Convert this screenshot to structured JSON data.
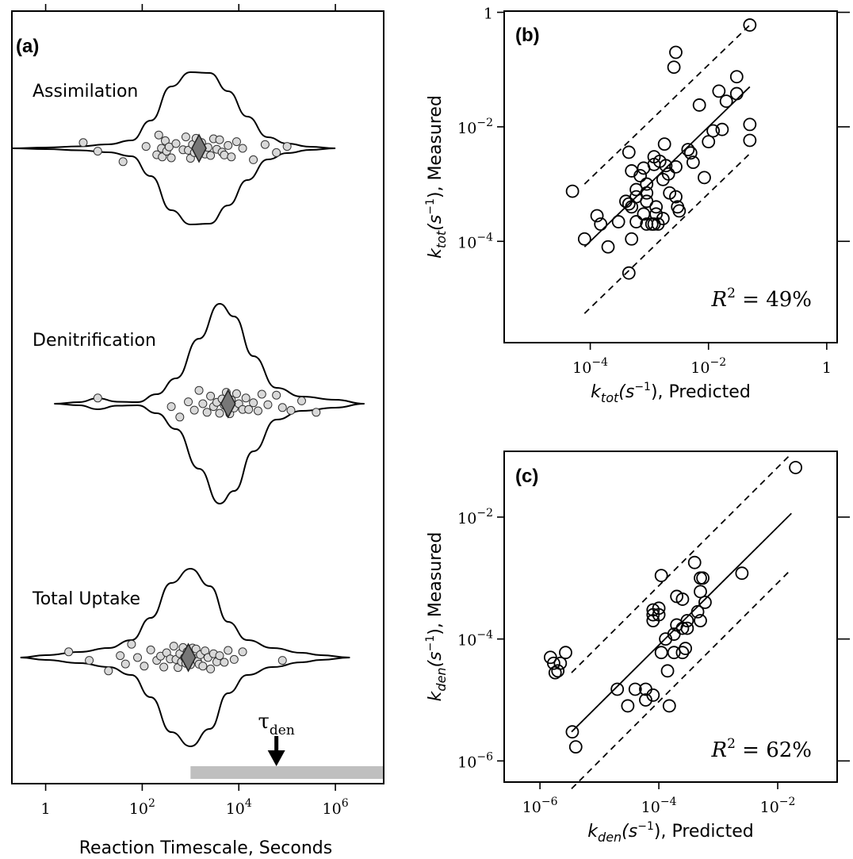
{
  "chart_data": [
    {
      "type": "scatter",
      "panel": "(a)",
      "xlabel": "Reaction Timescale, Seconds",
      "xscale": "log",
      "xlim": [
        0.2,
        10000000
      ],
      "x_ticks": [
        {
          "value": 1,
          "base": "1",
          "exp": ""
        },
        {
          "value": 100,
          "base": "10",
          "exp": "2"
        },
        {
          "value": 10000,
          "base": "10",
          "exp": "4"
        },
        {
          "value": 1000000,
          "base": "10",
          "exp": "6"
        }
      ],
      "groups": [
        {
          "name": "Assimilation",
          "median": 1500,
          "points": [
            6,
            12,
            40,
            120,
            200,
            220,
            250,
            260,
            300,
            320,
            360,
            400,
            500,
            700,
            800,
            900,
            1000,
            1100,
            1200,
            1300,
            1400,
            1500,
            1700,
            2000,
            2300,
            2600,
            3000,
            3500,
            4000,
            4500,
            5000,
            6000,
            7000,
            9000,
            12000,
            20000,
            35000,
            60000,
            100000
          ]
        },
        {
          "name": "Denitrification",
          "median": 6000,
          "points": [
            12,
            400,
            600,
            900,
            1200,
            1500,
            1800,
            2200,
            2600,
            3000,
            3500,
            4000,
            4500,
            5000,
            5500,
            6000,
            6500,
            7000,
            8000,
            9000,
            10000,
            12000,
            14000,
            16000,
            20000,
            25000,
            30000,
            40000,
            60000,
            80000,
            120000,
            200000,
            400000
          ]
        },
        {
          "name": "Total Uptake",
          "median": 900,
          "points": [
            3,
            8,
            20,
            35,
            45,
            60,
            80,
            110,
            150,
            200,
            240,
            280,
            320,
            380,
            450,
            500,
            550,
            600,
            650,
            700,
            750,
            800,
            850,
            900,
            950,
            1000,
            1100,
            1200,
            1300,
            1400,
            1500,
            1600,
            1800,
            2000,
            2300,
            2600,
            3000,
            3500,
            4000,
            5000,
            6000,
            8000,
            12000,
            80000
          ]
        }
      ],
      "annotation": {
        "symbol": "τ",
        "subscript": "den",
        "value": 60000
      },
      "range_bar": [
        1000,
        10000000
      ]
    },
    {
      "type": "scatter",
      "panel": "(b)",
      "xscale": "log",
      "yscale": "log",
      "xlim": [
        3.5e-06,
        1.5
      ],
      "ylim": [
        1.7e-06,
        1.05
      ],
      "x_ticks": [
        {
          "value": 0.0001,
          "base": "10",
          "exp": "−4"
        },
        {
          "value": 0.01,
          "base": "10",
          "exp": "−2"
        },
        {
          "value": 1,
          "base": "1",
          "exp": ""
        }
      ],
      "y_ticks": [
        {
          "value": 0.0001,
          "base": "10",
          "exp": "−4"
        },
        {
          "value": 0.01,
          "base": "10",
          "exp": "−2"
        },
        {
          "value": 1,
          "base": "1",
          "exp": ""
        }
      ],
      "xlabel": {
        "var": "k",
        "sub": "tot",
        "unit": "(s",
        "unit_exp": "−1",
        "close": ")",
        "suffix": ", Predicted"
      },
      "ylabel": {
        "var": "k",
        "sub": "tot",
        "unit": "(s",
        "unit_exp": "−1",
        "close": ")",
        "suffix": ", Measured"
      },
      "r2_label": {
        "lhs": "R",
        "exp": "2",
        "rhs": " = 49%"
      },
      "fit_line": [
        [
          8e-05,
          8e-05
        ],
        [
          0.05,
          0.05
        ]
      ],
      "band_upper": [
        [
          8e-05,
          0.001
        ],
        [
          0.05,
          0.6
        ]
      ],
      "band_lower": [
        [
          8e-05,
          5.5e-06
        ],
        [
          0.05,
          0.0034
        ]
      ],
      "points": [
        [
          0.05,
          0.6
        ],
        [
          0.0028,
          0.2
        ],
        [
          0.0026,
          0.11
        ],
        [
          0.03,
          0.075
        ],
        [
          0.015,
          0.042
        ],
        [
          0.03,
          0.038
        ],
        [
          0.02,
          0.028
        ],
        [
          0.007,
          0.024
        ],
        [
          0.05,
          0.011
        ],
        [
          0.017,
          0.009
        ],
        [
          0.012,
          0.0085
        ],
        [
          0.05,
          0.0058
        ],
        [
          0.01,
          0.0055
        ],
        [
          0.0018,
          0.005
        ],
        [
          0.0045,
          0.004
        ],
        [
          0.005,
          0.0035
        ],
        [
          0.00045,
          0.0036
        ],
        [
          0.0012,
          0.003
        ],
        [
          0.0015,
          0.0025
        ],
        [
          0.0019,
          0.0021
        ],
        [
          0.0028,
          0.002
        ],
        [
          0.0012,
          0.0022
        ],
        [
          0.0008,
          0.0019
        ],
        [
          0.0005,
          0.0017
        ],
        [
          0.0007,
          0.0014
        ],
        [
          0.0021,
          0.0015
        ],
        [
          0.0055,
          0.0024
        ],
        [
          0.0017,
          0.0012
        ],
        [
          0.0085,
          0.0013
        ],
        [
          0.0009,
          0.001
        ],
        [
          0.0006,
          0.0008
        ],
        [
          0.0009,
          0.0007
        ],
        [
          0.0022,
          0.0007
        ],
        [
          0.0028,
          0.0006
        ],
        [
          0.0006,
          0.0006
        ],
        [
          0.0009,
          0.0005
        ],
        [
          0.0004,
          0.0005
        ],
        [
          0.00045,
          0.00045
        ],
        [
          0.0005,
          0.0004
        ],
        [
          0.0013,
          0.0004
        ],
        [
          0.003,
          0.0004
        ],
        [
          0.0032,
          0.00034
        ],
        [
          0.0013,
          0.0003
        ],
        [
          0.0008,
          0.0003
        ],
        [
          0.00013,
          0.00028
        ],
        [
          0.0017,
          0.00025
        ],
        [
          0.0003,
          0.00022
        ],
        [
          0.0006,
          0.00022
        ],
        [
          0.00015,
          0.0002
        ],
        [
          0.0009,
          0.0002
        ],
        [
          0.0011,
          0.0002
        ],
        [
          0.0014,
          0.0002
        ],
        [
          8e-05,
          0.00011
        ],
        [
          0.0005,
          0.00011
        ],
        [
          0.0002,
          8e-05
        ],
        [
          0.0012,
          0.0002
        ],
        [
          0.00045,
          2.8e-05
        ],
        [
          5e-05,
          0.00075
        ]
      ]
    },
    {
      "type": "scatter",
      "panel": "(c)",
      "xscale": "log",
      "yscale": "log",
      "xlim": [
        2.5e-07,
        0.1
      ],
      "ylim": [
        4.5e-07,
        0.12
      ],
      "x_ticks": [
        {
          "value": 1e-06,
          "base": "10",
          "exp": "−6"
        },
        {
          "value": 0.0001,
          "base": "10",
          "exp": "−4"
        },
        {
          "value": 0.01,
          "base": "10",
          "exp": "−2"
        }
      ],
      "y_ticks": [
        {
          "value": 1e-06,
          "base": "10",
          "exp": "−6"
        },
        {
          "value": 0.0001,
          "base": "10",
          "exp": "−4"
        },
        {
          "value": 0.01,
          "base": "10",
          "exp": "−2"
        }
      ],
      "xlabel": {
        "var": "k",
        "sub": "den",
        "unit": "(s",
        "unit_exp": "−1",
        "close": ")",
        "suffix": ", Predicted"
      },
      "ylabel": {
        "var": "k",
        "sub": "den",
        "unit": "(s",
        "unit_exp": "−1",
        "close": ")",
        "suffix": ", Measured"
      },
      "r2_label": {
        "lhs": "R",
        "exp": "2",
        "rhs": " = 62%"
      },
      "fit_line": [
        [
          3.4e-06,
          3e-06
        ],
        [
          0.017,
          0.0115
        ]
      ],
      "band_upper": [
        [
          3.4e-06,
          2.8e-05
        ],
        [
          0.017,
          0.11
        ]
      ],
      "band_lower": [
        [
          3.4e-06,
          3.5e-07
        ],
        [
          0.017,
          0.0014
        ]
      ],
      "points": [
        [
          0.02,
          0.065
        ],
        [
          0.0025,
          0.0012
        ],
        [
          0.0004,
          0.0018
        ],
        [
          0.00011,
          0.0011
        ],
        [
          0.0005,
          0.001
        ],
        [
          0.00055,
          0.001
        ],
        [
          0.0005,
          0.0006
        ],
        [
          0.0002,
          0.0005
        ],
        [
          0.00025,
          0.00045
        ],
        [
          0.0006,
          0.0004
        ],
        [
          8e-05,
          0.0003
        ],
        [
          0.0001,
          0.00032
        ],
        [
          8e-05,
          0.00025
        ],
        [
          0.0001,
          0.00025
        ],
        [
          0.00045,
          0.00028
        ],
        [
          0.0005,
          0.0002
        ],
        [
          8e-05,
          0.0002
        ],
        [
          0.0003,
          0.0002
        ],
        [
          0.0002,
          0.00017
        ],
        [
          0.00025,
          0.00015
        ],
        [
          0.0003,
          0.00015
        ],
        [
          0.00018,
          0.00012
        ],
        [
          0.00013,
          0.0001
        ],
        [
          0.00011,
          6e-05
        ],
        [
          0.00018,
          6e-05
        ],
        [
          0.00025,
          6e-05
        ],
        [
          0.00028,
          7e-05
        ],
        [
          1.5e-06,
          5e-05
        ],
        [
          1.7e-06,
          4e-05
        ],
        [
          2e-06,
          3e-05
        ],
        [
          2.2e-06,
          4e-05
        ],
        [
          2.7e-06,
          6e-05
        ],
        [
          1.8e-06,
          2.8e-05
        ],
        [
          2e-05,
          1.5e-05
        ],
        [
          4e-05,
          1.5e-05
        ],
        [
          6e-05,
          1.5e-05
        ],
        [
          8e-05,
          1.2e-05
        ],
        [
          6e-05,
          1e-05
        ],
        [
          0.00014,
          3e-05
        ],
        [
          0.00015,
          8e-06
        ],
        [
          3e-05,
          8e-06
        ],
        [
          4e-06,
          1.7e-06
        ],
        [
          3.5e-06,
          3e-06
        ]
      ]
    }
  ]
}
